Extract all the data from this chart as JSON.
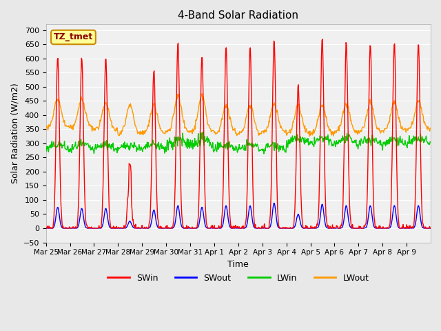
{
  "title": "4-Band Solar Radiation",
  "xlabel": "Time",
  "ylabel": "Solar Radiation (W/m2)",
  "ylim": [
    -50,
    720
  ],
  "yticks": [
    -50,
    0,
    50,
    100,
    150,
    200,
    250,
    300,
    350,
    400,
    450,
    500,
    550,
    600,
    650,
    700
  ],
  "legend_labels": [
    "SWin",
    "SWout",
    "LWin",
    "LWout"
  ],
  "legend_colors": [
    "#ff0000",
    "#0000ff",
    "#00cc00",
    "#ff9900"
  ],
  "annotation_text": "TZ_tmet",
  "annotation_bg": "#ffff99",
  "annotation_border": "#cc8800",
  "bg_color": "#e8e8e8",
  "plot_bg": "#f0f0f0",
  "SWin_peaks": [
    610,
    600,
    600,
    290,
    560,
    655,
    610,
    645,
    645,
    670,
    510,
    670,
    655,
    650,
    650,
    650
  ],
  "SWout_peaks": [
    75,
    70,
    70,
    25,
    65,
    80,
    75,
    80,
    80,
    90,
    50,
    85,
    80,
    80,
    80,
    80
  ],
  "LWout_base_vals": [
    355,
    355,
    345,
    335,
    335,
    340,
    340,
    335,
    335,
    340,
    335,
    335,
    340,
    340,
    345,
    350
  ],
  "date_labels": [
    "Mar 25",
    "Mar 26",
    "Mar 27",
    "Mar 28",
    "Mar 29",
    "Mar 30",
    "Mar 31",
    "Apr 1",
    "Apr 2",
    "Apr 3",
    "Apr 4",
    "Apr 5",
    "Apr 6",
    "Apr 7",
    "Apr 8",
    "Apr 9"
  ],
  "num_days": 16,
  "LWin_base": 275
}
